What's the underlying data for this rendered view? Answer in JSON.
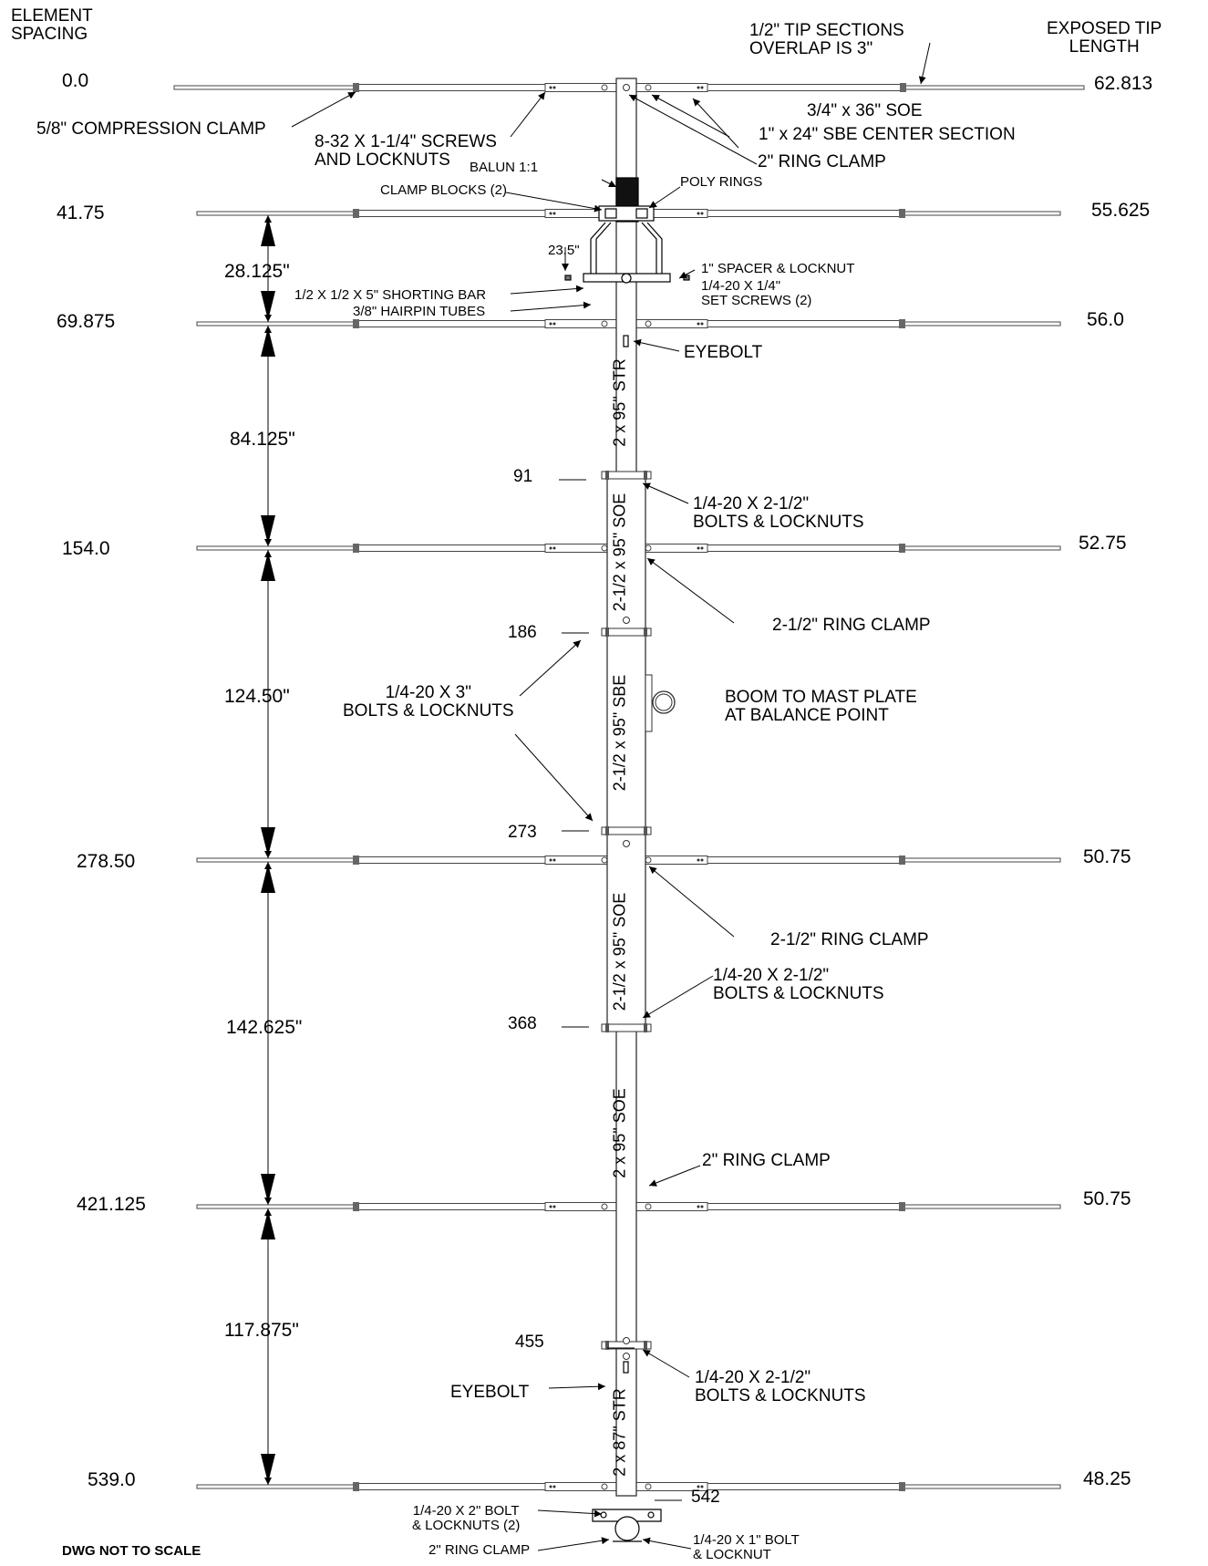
{
  "headers": {
    "element_spacing": [
      "ELEMENT",
      "SPACING"
    ],
    "exposed_tip": [
      "EXPOSED TIP",
      "LENGTH"
    ],
    "note": "DWG NOT TO SCALE"
  },
  "elements": [
    {
      "spacing": "0.0",
      "tip": "62.813"
    },
    {
      "spacing": "41.75",
      "tip": "55.625"
    },
    {
      "spacing": "69.875",
      "tip": "56.0"
    },
    {
      "spacing": "154.0",
      "tip": "52.75"
    },
    {
      "spacing": "278.50",
      "tip": "50.75"
    },
    {
      "spacing": "421.125",
      "tip": "50.75"
    },
    {
      "spacing": "539.0",
      "tip": "48.25"
    }
  ],
  "gaps": [
    "28.125\"",
    "84.125\"",
    "124.50\"",
    "142.625\"",
    "117.875\""
  ],
  "boom_marks": [
    "91",
    "186",
    "273",
    "368",
    "455",
    "542"
  ],
  "boom_sections": [
    "2 x 95\" STR",
    "2-1/2 x 95\" SOE",
    "2-1/2 x 95\" SBE",
    "2-1/2 x 95\" SOE",
    "2 x 95\" SOE",
    "2 x 87\" STR"
  ],
  "callouts": {
    "tip_overlap": [
      "1/2\" TIP SECTIONS",
      "OVERLAP IS 3\""
    ],
    "compression_clamp": "5/8\" COMPRESSION CLAMP",
    "screws": [
      "8-32 X 1-1/4\" SCREWS",
      "AND LOCKNUTS"
    ],
    "soe_36": "3/4\" x 36\" SOE",
    "sbe_center": "1\" x 24\" SBE CENTER SECTION",
    "ring_clamp_2_top": "2\" RING CLAMP",
    "balun": "BALUN 1:1",
    "clamp_blocks": "CLAMP BLOCKS (2)",
    "poly_rings": "POLY RINGS",
    "dim_23_5": "23.5\"",
    "spacer": "1\" SPACER & LOCKNUT",
    "set_screws": [
      "1/4-20 X 1/4\"",
      "SET SCREWS (2)"
    ],
    "shorting_bar": "1/2 X 1/2 X 5\" SHORTING BAR",
    "hairpin": "3/8\" HAIRPIN TUBES",
    "eyebolt_top": "EYEBOLT",
    "bolts_212_a": [
      "1/4-20 X 2-1/2\"",
      "BOLTS & LOCKNUTS"
    ],
    "ring_clamp_212_a": "2-1/2\" RING CLAMP",
    "bolts_3": [
      "1/4-20 X 3\"",
      "BOLTS & LOCKNUTS"
    ],
    "mast_plate": [
      "BOOM TO MAST PLATE",
      "AT BALANCE POINT"
    ],
    "ring_clamp_212_b": "2-1/2\" RING CLAMP",
    "bolts_212_b": [
      "1/4-20 X 2-1/2\"",
      "BOLTS & LOCKNUTS"
    ],
    "ring_clamp_2_lower": "2\" RING CLAMP",
    "eyebolt_bottom": "EYEBOLT",
    "bolts_212_c": [
      "1/4-20 X 2-1/2\"",
      "BOLTS & LOCKNUTS"
    ],
    "bolt_2": [
      "1/4-20 X 2\" BOLT",
      "& LOCKNUTS (2)"
    ],
    "ring_clamp_2_bottom": "2\" RING CLAMP",
    "bolt_1": [
      "1/4-20 X 1\" BOLT",
      "& LOCKNUT"
    ]
  }
}
